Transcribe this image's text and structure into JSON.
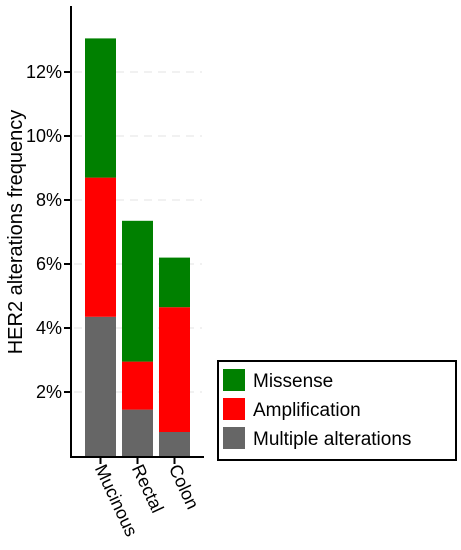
{
  "chart_data": {
    "type": "bar",
    "stacked": true,
    "categories": [
      "Mucinous",
      "Rectal",
      "Colon"
    ],
    "series": [
      {
        "name": "Multiple alterations",
        "color": "#666666",
        "values": [
          4.35,
          1.45,
          0.75
        ]
      },
      {
        "name": "Amplification",
        "color": "#ff0000",
        "values": [
          4.35,
          1.5,
          3.9
        ]
      },
      {
        "name": "Missense",
        "color": "#008000",
        "values": [
          4.35,
          4.4,
          1.55
        ]
      }
    ],
    "ylabel": "HER2 alterations frequency",
    "yticks": [
      2,
      4,
      6,
      8,
      10,
      12
    ],
    "ytick_labels": [
      "2%",
      "4%",
      "6%",
      "8%",
      "10%",
      "12%"
    ],
    "ylim": [
      0,
      13.5
    ],
    "grid": "horizontal-dashed",
    "legend_position": "bottom-right",
    "legend_order": [
      "Missense",
      "Amplification",
      "Multiple alterations"
    ]
  }
}
